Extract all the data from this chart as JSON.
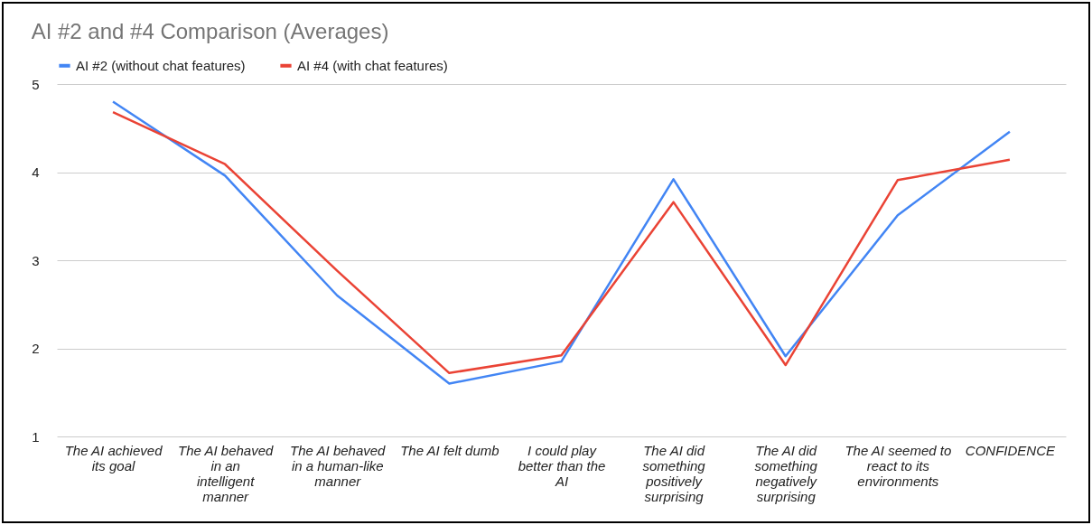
{
  "chart_data": {
    "type": "line",
    "title": "AI #2 and #4 Comparison (Averages)",
    "categories": [
      "The AI achieved its goal",
      "The AI behaved in an intelligent manner",
      "The AI behaved in a human-like manner",
      "The AI felt dumb",
      "I could play better than the AI",
      "The AI did something positively surprising",
      "The AI did something negatively surprising",
      "The AI seemed to react to its environments",
      "CONFIDENCE"
    ],
    "series": [
      {
        "name": "AI #2 (without chat features)",
        "color": "#4285f4",
        "values": [
          4.8,
          3.96,
          2.6,
          1.6,
          1.85,
          3.92,
          1.91,
          3.51,
          4.46
        ]
      },
      {
        "name": "AI #4 (with chat features)",
        "color": "#ea4335",
        "values": [
          4.68,
          4.09,
          2.88,
          1.72,
          1.92,
          3.66,
          1.81,
          3.91,
          4.14
        ]
      }
    ],
    "ylim": [
      1,
      5
    ],
    "yticks": [
      1,
      2,
      3,
      4,
      5
    ],
    "grid": "y",
    "legend": "top",
    "marker": "none",
    "line_style": "solid"
  }
}
